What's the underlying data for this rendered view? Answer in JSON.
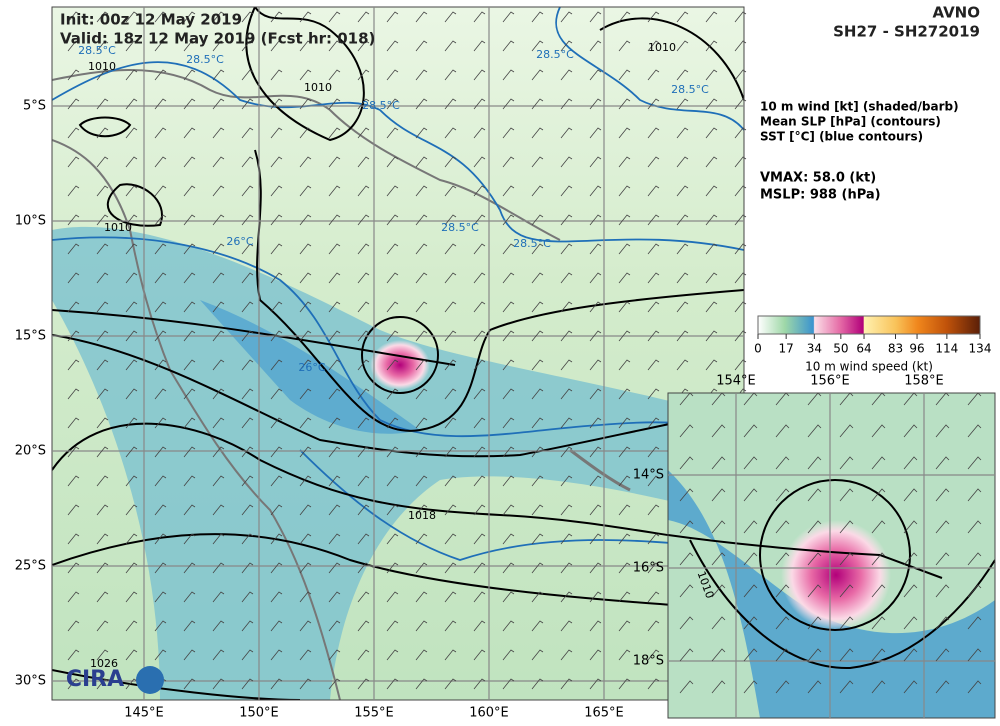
{
  "header": {
    "init": "Init:   00z 12 May 2019",
    "valid": "Valid: 18z 12 May 2019 (Fcst hr: 018)",
    "model": "AVNO",
    "storm": "SH27 - SH272019"
  },
  "legend": {
    "lines": [
      "10 m wind [kt] (shaded/barb)",
      "Mean SLP [hPa] (contours)",
      "SST [°C] (blue contours)"
    ],
    "vmax": "VMAX:  58.0 (kt)",
    "mslp": "MSLP:  988 (hPa)"
  },
  "colorbar": {
    "ticks": [
      0,
      17,
      34,
      50,
      64,
      83,
      96,
      114,
      134
    ],
    "label": "10 m wind speed (kt)"
  },
  "main_map": {
    "lat_labels": [
      "5°S",
      "10°S",
      "15°S",
      "20°S",
      "25°S",
      "30°S"
    ],
    "lon_labels": [
      "145°E",
      "150°E",
      "155°E",
      "160°E",
      "165°E"
    ],
    "contour_labels": [
      "1010",
      "1010",
      "1010",
      "1010",
      "1018",
      "1026",
      "28.5°C",
      "28.5°C",
      "28.5°C",
      "28.5°C",
      "28.5°C",
      "28.5°C",
      "28.5°C",
      "26°C",
      "26°C"
    ],
    "logo": "CIRA"
  },
  "inset_map": {
    "lat_labels": [
      "14°S",
      "16°S",
      "18°S"
    ],
    "lon_labels": [
      "154°E",
      "156°E",
      "158°E"
    ],
    "contour_labels": [
      "1010"
    ]
  }
}
